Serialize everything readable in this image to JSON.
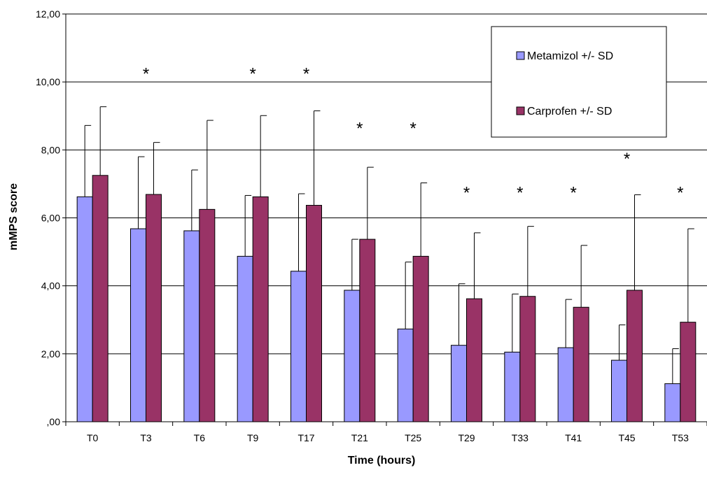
{
  "chart_data": {
    "type": "bar",
    "title": "",
    "xlabel": "Time (hours)",
    "ylabel": "mMPS score",
    "ylim": [
      0,
      12
    ],
    "yticks": [
      0,
      2,
      4,
      6,
      8,
      10,
      12
    ],
    "ytick_labels": [
      ",00",
      "2,00",
      "4,00",
      "6,00",
      "8,00",
      "10,00",
      "12,00"
    ],
    "grid": true,
    "legend_position": "top-right",
    "categories": [
      "T0",
      "T3",
      "T6",
      "T9",
      "T17",
      "T21",
      "T25",
      "T29",
      "T33",
      "T41",
      "T45",
      "T53"
    ],
    "series": [
      {
        "name": "Metamizol +/- SD",
        "color": "#9999ff",
        "values": [
          6.62,
          5.68,
          5.62,
          4.87,
          4.43,
          3.87,
          2.73,
          2.25,
          2.05,
          2.18,
          1.81,
          1.12
        ],
        "sd": [
          2.1,
          2.12,
          1.79,
          1.79,
          2.28,
          1.5,
          1.97,
          1.81,
          1.71,
          1.42,
          1.04,
          1.03
        ]
      },
      {
        "name": "Carprofen +/- SD",
        "color": "#993366",
        "values": [
          7.25,
          6.69,
          6.25,
          6.62,
          6.37,
          5.37,
          4.87,
          3.62,
          3.69,
          3.37,
          3.87,
          2.93
        ],
        "sd": [
          2.02,
          1.53,
          2.62,
          2.39,
          2.78,
          2.12,
          2.16,
          1.94,
          2.06,
          1.82,
          2.81,
          2.75
        ]
      }
    ],
    "annotations": [
      {
        "category": "T3",
        "text": "*",
        "y": 10.3
      },
      {
        "category": "T9",
        "text": "*",
        "y": 10.3
      },
      {
        "category": "T17",
        "text": "*",
        "y": 10.3
      },
      {
        "category": "T21",
        "text": "*",
        "y": 8.7
      },
      {
        "category": "T25",
        "text": "*",
        "y": 8.7
      },
      {
        "category": "T29",
        "text": "*",
        "y": 6.8
      },
      {
        "category": "T33",
        "text": "*",
        "y": 6.8
      },
      {
        "category": "T41",
        "text": "*",
        "y": 6.8
      },
      {
        "category": "T45",
        "text": "*",
        "y": 7.8
      },
      {
        "category": "T53",
        "text": "*",
        "y": 6.8
      }
    ]
  }
}
